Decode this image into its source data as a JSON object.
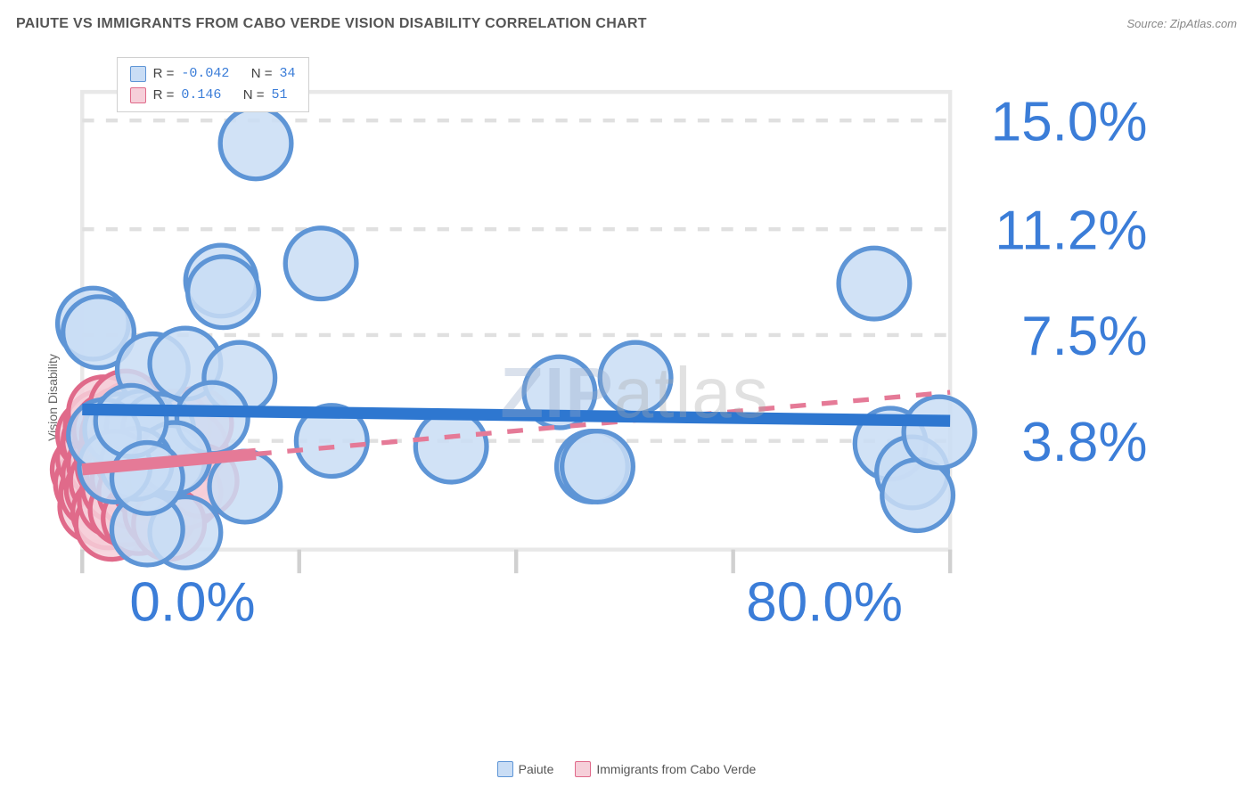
{
  "title": "PAIUTE VS IMMIGRANTS FROM CABO VERDE VISION DISABILITY CORRELATION CHART",
  "source": "Source: ZipAtlas.com",
  "ylabel": "Vision Disability",
  "watermark_a": "ZIP",
  "watermark_b": "atlas",
  "bottom_legend": {
    "series1": "Paiute",
    "series2": "Immigrants from Cabo Verde"
  },
  "corr_box": {
    "r1_r": "-0.042",
    "r1_n": "34",
    "r2_r": "0.146",
    "r2_n": "51",
    "R": "R =",
    "N": "N ="
  },
  "chart": {
    "type": "scatter",
    "xlim": [
      0,
      80
    ],
    "ylim": [
      0,
      16
    ],
    "xticks": [
      0,
      20,
      40,
      60,
      80
    ],
    "yticks": [
      3.8,
      7.5,
      11.2,
      15.0
    ],
    "xtick_labels": [
      "0.0%",
      "",
      "",
      "",
      "80.0%"
    ],
    "ytick_labels": [
      "3.8%",
      "7.5%",
      "11.2%",
      "15.0%"
    ],
    "background_color": "#ffffff",
    "grid_color": "#e0e0e0",
    "series": [
      {
        "name": "Paiute",
        "marker_fill": "#c9ddf5",
        "marker_stroke": "#5e95d6",
        "marker_r": 9,
        "line_color": "#2e77d0",
        "line_width": 3,
        "line_dash": "",
        "fit": {
          "x1": 0,
          "y1": 4.9,
          "x2": 80,
          "y2": 4.5
        },
        "points": [
          [
            1.0,
            7.9
          ],
          [
            1.5,
            7.6
          ],
          [
            6.5,
            6.3
          ],
          [
            9.5,
            6.5
          ],
          [
            14.5,
            6.0
          ],
          [
            12.8,
            9.4
          ],
          [
            13.0,
            9.0
          ],
          [
            16.0,
            14.2
          ],
          [
            22.0,
            10.0
          ],
          [
            3.5,
            4.2
          ],
          [
            5.5,
            4.3
          ],
          [
            7.0,
            4.2
          ],
          [
            8.0,
            3.1
          ],
          [
            9.5,
            0.6
          ],
          [
            12.0,
            4.6
          ],
          [
            15.0,
            2.2
          ],
          [
            6.0,
            0.7
          ],
          [
            8.5,
            3.2
          ],
          [
            5.0,
            3.0
          ],
          [
            23.0,
            3.8
          ],
          [
            34.0,
            3.6
          ],
          [
            44.0,
            5.5
          ],
          [
            47.0,
            2.9
          ],
          [
            47.5,
            2.9
          ],
          [
            51.0,
            6.0
          ],
          [
            73.0,
            9.3
          ],
          [
            74.5,
            3.7
          ],
          [
            76.5,
            2.7
          ],
          [
            77.0,
            1.9
          ],
          [
            79.0,
            4.1
          ],
          [
            3.0,
            2.9
          ],
          [
            2.0,
            4.0
          ],
          [
            4.5,
            4.5
          ],
          [
            6.0,
            2.5
          ]
        ]
      },
      {
        "name": "Immigrants from Cabo Verde",
        "marker_fill": "#f6cfd9",
        "marker_stroke": "#e06a8a",
        "marker_r": 9,
        "line_color": "#e57a97",
        "line_width": 3,
        "line_dash": "4 4",
        "fit_solid_until": 16,
        "fit": {
          "x1": 0,
          "y1": 2.8,
          "x2": 80,
          "y2": 5.5
        },
        "points": [
          [
            0.5,
            2.8
          ],
          [
            0.8,
            2.3
          ],
          [
            1.0,
            3.2
          ],
          [
            1.0,
            4.0
          ],
          [
            1.2,
            1.5
          ],
          [
            1.3,
            2.0
          ],
          [
            1.5,
            2.6
          ],
          [
            1.5,
            3.8
          ],
          [
            1.7,
            4.3
          ],
          [
            1.8,
            2.1
          ],
          [
            2.0,
            3.0
          ],
          [
            2.0,
            4.8
          ],
          [
            2.2,
            2.4
          ],
          [
            2.4,
            1.3
          ],
          [
            2.5,
            3.6
          ],
          [
            2.5,
            4.2
          ],
          [
            2.7,
            0.9
          ],
          [
            2.8,
            2.9
          ],
          [
            3.0,
            3.4
          ],
          [
            3.0,
            1.7
          ],
          [
            3.2,
            4.0
          ],
          [
            3.3,
            2.2
          ],
          [
            3.5,
            3.0
          ],
          [
            3.5,
            4.4
          ],
          [
            3.7,
            2.7
          ],
          [
            4.0,
            3.8
          ],
          [
            4.0,
            1.4
          ],
          [
            4.2,
            2.5
          ],
          [
            4.5,
            3.2
          ],
          [
            4.5,
            4.6
          ],
          [
            4.8,
            2.0
          ],
          [
            5.0,
            3.5
          ],
          [
            5.0,
            4.0
          ],
          [
            5.2,
            1.1
          ],
          [
            5.5,
            2.8
          ],
          [
            5.8,
            3.6
          ],
          [
            6.0,
            2.3
          ],
          [
            6.2,
            4.1
          ],
          [
            6.5,
            3.0
          ],
          [
            7.0,
            3.4
          ],
          [
            7.2,
            1.3
          ],
          [
            7.5,
            2.6
          ],
          [
            8.0,
            3.8
          ],
          [
            8.5,
            4.3
          ],
          [
            9.0,
            2.9
          ],
          [
            9.5,
            2.0
          ],
          [
            10.0,
            3.6
          ],
          [
            10.5,
            4.4
          ],
          [
            11.0,
            2.4
          ],
          [
            8.0,
            0.9
          ],
          [
            4.0,
            5.0
          ]
        ]
      }
    ]
  }
}
